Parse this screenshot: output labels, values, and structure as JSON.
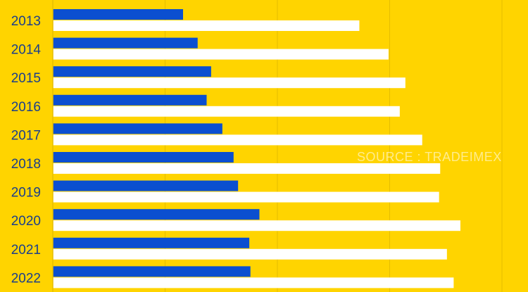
{
  "chart_data": {
    "type": "bar",
    "orientation": "horizontal",
    "categories": [
      "2013",
      "2014",
      "2015",
      "2016",
      "2017",
      "2018",
      "2019",
      "2020",
      "2021",
      "2022"
    ],
    "series": [
      {
        "values": [
          1.16,
          1.29,
          1.41,
          1.37,
          1.51,
          1.61,
          1.65,
          1.84,
          1.75,
          1.76
        ]
      },
      {
        "values": [
          2.73,
          2.99,
          3.14,
          3.09,
          3.29,
          3.45,
          3.44,
          3.63,
          3.51,
          3.57
        ]
      }
    ],
    "xlim": [
      0,
      4
    ],
    "grid": true,
    "colors": {
      "background": "#FFD400",
      "series_0": "#0B4FD0",
      "series_1": "#FFFFFF",
      "grid": "#E6BE00",
      "labels": "#1A3E8C"
    },
    "watermark": "SOURCE : TRADEIMEX"
  }
}
